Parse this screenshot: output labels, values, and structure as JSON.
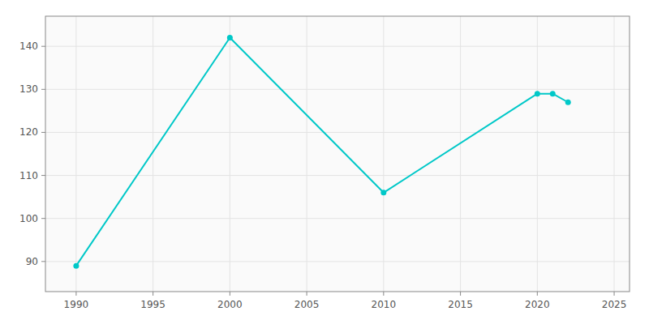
{
  "chart_data": {
    "type": "line",
    "x": [
      1990,
      2000,
      2010,
      2020,
      2021,
      2022
    ],
    "values": [
      89,
      142,
      106,
      129,
      129,
      127
    ],
    "color": "#00c8c8",
    "marker": "circle",
    "xlim": [
      1988,
      2026
    ],
    "ylim": [
      83,
      147
    ],
    "xticks": [
      1990,
      1995,
      2000,
      2005,
      2010,
      2015,
      2020,
      2025
    ],
    "yticks": [
      90,
      100,
      110,
      120,
      130,
      140
    ],
    "grid": true
  }
}
